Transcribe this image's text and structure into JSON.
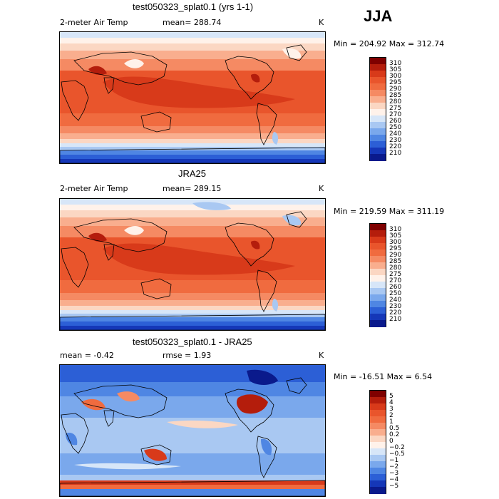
{
  "season": "JJA",
  "chart_data": [
    {
      "type": "heatmap",
      "title": "test050323_splat0.1 (yrs 1-1)",
      "variable": "2-meter Air Temp",
      "mean_label": "mean= 288.74",
      "units": "K",
      "range_label": "Min = 204.92 Max = 312.74",
      "min": 204.92,
      "max": 312.74,
      "mean": 288.74,
      "colorbar": {
        "levels": [
          "310",
          "305",
          "300",
          "295",
          "290",
          "285",
          "280",
          "275",
          "270",
          "260",
          "250",
          "240",
          "230",
          "220",
          "210"
        ],
        "colors": [
          "#7f0000",
          "#b41d0c",
          "#d83a1a",
          "#e9552c",
          "#f06b3f",
          "#f58a63",
          "#f9ae8e",
          "#fbd7c3",
          "#fff2ea",
          "#d7e6f8",
          "#a9c8f2",
          "#7aa8ec",
          "#4f86e3",
          "#2c5fd6",
          "#1537b8",
          "#0a1a8c"
        ]
      }
    },
    {
      "type": "heatmap",
      "title": "JRA25",
      "variable": "2-meter Air Temp",
      "mean_label": "mean= 289.15",
      "units": "K",
      "range_label": "Min = 219.59 Max = 311.19",
      "min": 219.59,
      "max": 311.19,
      "mean": 289.15,
      "colorbar": {
        "levels": [
          "310",
          "305",
          "300",
          "295",
          "290",
          "285",
          "280",
          "275",
          "270",
          "260",
          "250",
          "240",
          "230",
          "220",
          "210"
        ],
        "colors": [
          "#7f0000",
          "#b41d0c",
          "#d83a1a",
          "#e9552c",
          "#f06b3f",
          "#f58a63",
          "#f9ae8e",
          "#fbd7c3",
          "#fff2ea",
          "#d7e6f8",
          "#a9c8f2",
          "#7aa8ec",
          "#4f86e3",
          "#2c5fd6",
          "#1537b8",
          "#0a1a8c"
        ]
      }
    },
    {
      "type": "heatmap",
      "title": "test050323_splat0.1 - JRA25",
      "mean_label": "mean =   -0.42",
      "rmse_label": "rmse =    1.93",
      "units": "K",
      "range_label": "Min = -16.51 Max =    6.54",
      "min": -16.51,
      "max": 6.54,
      "mean": -0.42,
      "rmse": 1.93,
      "colorbar": {
        "levels": [
          "5",
          "4",
          "3",
          "2",
          "1",
          "0.5",
          "0.2",
          "0",
          "−0.2",
          "−0.5",
          "−1",
          "−2",
          "−3",
          "−4",
          "−5"
        ],
        "colors": [
          "#7f0000",
          "#b41d0c",
          "#d83a1a",
          "#e9552c",
          "#f06b3f",
          "#f58a63",
          "#f9ae8e",
          "#fbd7c3",
          "#fff2ea",
          "#d7e6f8",
          "#a9c8f2",
          "#7aa8ec",
          "#4f86e3",
          "#2c5fd6",
          "#1537b8",
          "#0a1a8c"
        ]
      }
    }
  ]
}
